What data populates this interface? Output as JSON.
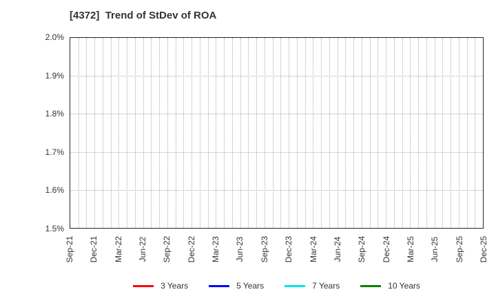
{
  "chart": {
    "title": "[4372]  Trend of StDev of ROA"
  },
  "chart_data": {
    "type": "line",
    "title": "[4372]  Trend of StDev of ROA",
    "x_tick_labels": [
      "Sep-21",
      "Dec-21",
      "Mar-22",
      "Jun-22",
      "Sep-22",
      "Dec-22",
      "Mar-23",
      "Jun-23",
      "Sep-23",
      "Dec-23",
      "Mar-24",
      "Jun-24",
      "Sep-24",
      "Dec-24",
      "Mar-25",
      "Jun-25",
      "Sep-25",
      "Dec-25"
    ],
    "months_per_tick": 3,
    "y_tick_labels": [
      "2.0%",
      "1.9%",
      "1.8%",
      "1.7%",
      "1.6%",
      "1.5%"
    ],
    "ylim": [
      1.5,
      2.0
    ],
    "y_unit": "%",
    "grid": true,
    "grid_style": "dotted",
    "legend_position": "bottom",
    "series": [
      {
        "name": "3 Years",
        "color": "#ff0000",
        "values": []
      },
      {
        "name": "5 Years",
        "color": "#0000ff",
        "values": []
      },
      {
        "name": "7 Years",
        "color": "#00e5e5",
        "values": []
      },
      {
        "name": "10 Years",
        "color": "#008000",
        "values": []
      }
    ]
  }
}
